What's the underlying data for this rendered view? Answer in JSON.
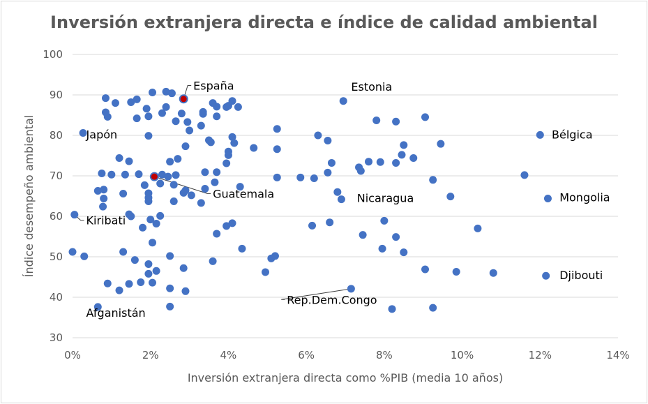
{
  "chart_data": {
    "type": "scatter",
    "title": "Inversión extranjera directa e índice de calidad ambiental",
    "xlabel": "Inversión extranjera directa como %PIB (media 10 años)",
    "ylabel": "Índice desempeño ambiental",
    "xlim": [
      0,
      14
    ],
    "ylim": [
      30,
      100
    ],
    "x_ticks": [
      "0%",
      "2%",
      "4%",
      "6%",
      "8%",
      "10%",
      "12%",
      "14%"
    ],
    "y_ticks": [
      "30",
      "40",
      "50",
      "60",
      "70",
      "80",
      "90",
      "100"
    ],
    "grid": "horizontal",
    "colors": {
      "point": "#4472c4",
      "highlight": "#c00000",
      "grid": "#d9d9d9",
      "text": "#595959"
    },
    "points": [
      [
        0.05,
        60.4
      ],
      [
        0.0,
        51.2
      ],
      [
        0.3,
        50.1
      ],
      [
        0.27,
        80.6
      ],
      [
        0.65,
        37.6
      ],
      [
        0.85,
        89.2
      ],
      [
        0.85,
        85.7
      ],
      [
        0.9,
        84.6
      ],
      [
        1.1,
        88.0
      ],
      [
        1.5,
        88.2
      ],
      [
        1.65,
        88.9
      ],
      [
        1.65,
        84.2
      ],
      [
        1.9,
        86.6
      ],
      [
        1.95,
        84.7
      ],
      [
        2.05,
        90.6
      ],
      [
        2.4,
        90.8
      ],
      [
        2.55,
        90.4
      ],
      [
        2.3,
        85.5
      ],
      [
        2.4,
        87.0
      ],
      [
        2.65,
        83.5
      ],
      [
        2.8,
        85.4
      ],
      [
        2.95,
        83.3
      ],
      [
        3.0,
        81.2
      ],
      [
        3.35,
        85.3
      ],
      [
        3.35,
        85.8
      ],
      [
        3.6,
        88.0
      ],
      [
        3.3,
        82.4
      ],
      [
        3.7,
        84.7
      ],
      [
        3.7,
        87.1
      ],
      [
        3.95,
        87.0
      ],
      [
        4.0,
        87.3
      ],
      [
        4.1,
        88.5
      ],
      [
        4.25,
        87.0
      ],
      [
        1.95,
        79.9
      ],
      [
        3.5,
        78.8
      ],
      [
        3.55,
        78.3
      ],
      [
        4.1,
        79.6
      ],
      [
        4.15,
        78.1
      ],
      [
        2.9,
        77.3
      ],
      [
        4.0,
        76.0
      ],
      [
        4.0,
        75.1
      ],
      [
        4.65,
        76.9
      ],
      [
        5.25,
        81.6
      ],
      [
        5.25,
        76.6
      ],
      [
        1.2,
        74.4
      ],
      [
        1.45,
        73.6
      ],
      [
        2.5,
        73.5
      ],
      [
        2.7,
        74.2
      ],
      [
        0.75,
        70.6
      ],
      [
        1.0,
        70.3
      ],
      [
        1.35,
        70.3
      ],
      [
        1.7,
        70.4
      ],
      [
        2.3,
        70.3
      ],
      [
        2.45,
        69.8
      ],
      [
        2.65,
        70.2
      ],
      [
        2.6,
        67.8
      ],
      [
        2.25,
        68.1
      ],
      [
        1.85,
        67.7
      ],
      [
        3.4,
        70.9
      ],
      [
        3.7,
        70.9
      ],
      [
        3.95,
        73.1
      ],
      [
        3.65,
        68.4
      ],
      [
        0.65,
        66.3
      ],
      [
        0.8,
        66.6
      ],
      [
        0.8,
        64.4
      ],
      [
        0.78,
        62.4
      ],
      [
        1.3,
        65.6
      ],
      [
        1.95,
        65.7
      ],
      [
        1.95,
        64.6
      ],
      [
        1.95,
        63.7
      ],
      [
        2.85,
        65.8
      ],
      [
        2.9,
        66.4
      ],
      [
        3.05,
        65.2
      ],
      [
        3.4,
        66.8
      ],
      [
        3.3,
        63.3
      ],
      [
        2.6,
        63.7
      ],
      [
        4.3,
        67.3
      ],
      [
        1.45,
        60.5
      ],
      [
        1.5,
        60.0
      ],
      [
        2.0,
        59.2
      ],
      [
        2.15,
        58.2
      ],
      [
        2.25,
        60.1
      ],
      [
        1.8,
        57.2
      ],
      [
        3.95,
        57.6
      ],
      [
        4.1,
        58.3
      ],
      [
        3.7,
        55.7
      ],
      [
        2.05,
        53.5
      ],
      [
        1.3,
        51.2
      ],
      [
        1.6,
        49.2
      ],
      [
        2.5,
        50.2
      ],
      [
        3.6,
        48.9
      ],
      [
        4.35,
        52.0
      ],
      [
        5.1,
        49.6
      ],
      [
        5.2,
        50.2
      ],
      [
        1.95,
        48.2
      ],
      [
        1.95,
        45.8
      ],
      [
        2.15,
        46.5
      ],
      [
        2.85,
        47.2
      ],
      [
        4.95,
        46.2
      ],
      [
        0.9,
        43.4
      ],
      [
        1.2,
        41.7
      ],
      [
        1.45,
        43.3
      ],
      [
        1.75,
        43.7
      ],
      [
        2.05,
        43.6
      ],
      [
        2.5,
        42.2
      ],
      [
        2.9,
        41.5
      ],
      [
        2.5,
        37.7
      ],
      [
        6.3,
        80.0
      ],
      [
        6.55,
        78.7
      ],
      [
        6.95,
        88.5
      ],
      [
        6.65,
        73.2
      ],
      [
        6.55,
        70.8
      ],
      [
        6.2,
        69.4
      ],
      [
        5.85,
        69.6
      ],
      [
        5.25,
        69.6
      ],
      [
        6.8,
        66.0
      ],
      [
        6.9,
        64.2
      ],
      [
        7.35,
        72.1
      ],
      [
        7.4,
        71.2
      ],
      [
        7.6,
        73.5
      ],
      [
        7.9,
        73.4
      ],
      [
        7.8,
        83.7
      ],
      [
        8.3,
        83.4
      ],
      [
        8.3,
        73.2
      ],
      [
        8.45,
        75.2
      ],
      [
        8.5,
        77.6
      ],
      [
        8.75,
        74.4
      ],
      [
        9.05,
        84.5
      ],
      [
        9.25,
        69.0
      ],
      [
        9.45,
        77.9
      ],
      [
        9.7,
        64.9
      ],
      [
        6.15,
        57.7
      ],
      [
        6.6,
        58.5
      ],
      [
        7.45,
        55.4
      ],
      [
        8.0,
        58.9
      ],
      [
        8.3,
        54.9
      ],
      [
        7.95,
        52.0
      ],
      [
        8.5,
        51.1
      ],
      [
        9.05,
        46.9
      ],
      [
        9.85,
        46.3
      ],
      [
        10.4,
        57.0
      ],
      [
        10.8,
        46.0
      ],
      [
        7.15,
        42.1
      ],
      [
        8.2,
        37.1
      ],
      [
        9.25,
        37.4
      ],
      [
        11.6,
        70.2
      ],
      [
        12.0,
        80.1
      ],
      [
        12.2,
        64.4
      ],
      [
        12.15,
        45.3
      ]
    ],
    "highlight_points": [
      [
        2.1,
        69.8
      ],
      [
        2.85,
        89.0
      ]
    ],
    "annotations": [
      {
        "text": "España",
        "x": 2.85,
        "y": 89.0,
        "tx": 3.1,
        "ty": 91.3,
        "leader": true,
        "anchor": "start"
      },
      {
        "text": "Estonia",
        "x": 6.95,
        "y": 88.5,
        "tx": 7.15,
        "ty": 91.0,
        "leader": false,
        "anchor": "start"
      },
      {
        "text": "Japón",
        "x": 0.27,
        "y": 80.6,
        "tx": 0.35,
        "ty": 79.2,
        "leader": false,
        "anchor": "start"
      },
      {
        "text": "Bélgica",
        "x": 12.0,
        "y": 80.1,
        "tx": 12.3,
        "ty": 79.2,
        "leader": false,
        "anchor": "start"
      },
      {
        "text": "Guatemala",
        "x": 2.1,
        "y": 69.8,
        "tx": 3.6,
        "ty": 64.6,
        "leader": true,
        "anchor": "start"
      },
      {
        "text": "Nicaragua",
        "x": 6.9,
        "y": 64.2,
        "tx": 7.3,
        "ty": 63.5,
        "leader": false,
        "anchor": "start"
      },
      {
        "text": "Mongolia",
        "x": 12.2,
        "y": 64.4,
        "tx": 12.5,
        "ty": 63.7,
        "leader": false,
        "anchor": "start"
      },
      {
        "text": "Kiribati",
        "x": 0.05,
        "y": 60.4,
        "tx": 0.35,
        "ty": 58.0,
        "leader": true,
        "anchor": "start"
      },
      {
        "text": "Djibouti",
        "x": 12.15,
        "y": 45.3,
        "tx": 12.5,
        "ty": 44.5,
        "leader": false,
        "anchor": "start"
      },
      {
        "text": "Rep.Dem.Congo",
        "x": 7.15,
        "y": 42.1,
        "tx": 5.5,
        "ty": 38.4,
        "leader": true,
        "anchor": "start"
      },
      {
        "text": "Afganistán",
        "x": 0.65,
        "y": 37.6,
        "tx": 0.35,
        "ty": 35.2,
        "leader": false,
        "anchor": "start"
      }
    ]
  }
}
